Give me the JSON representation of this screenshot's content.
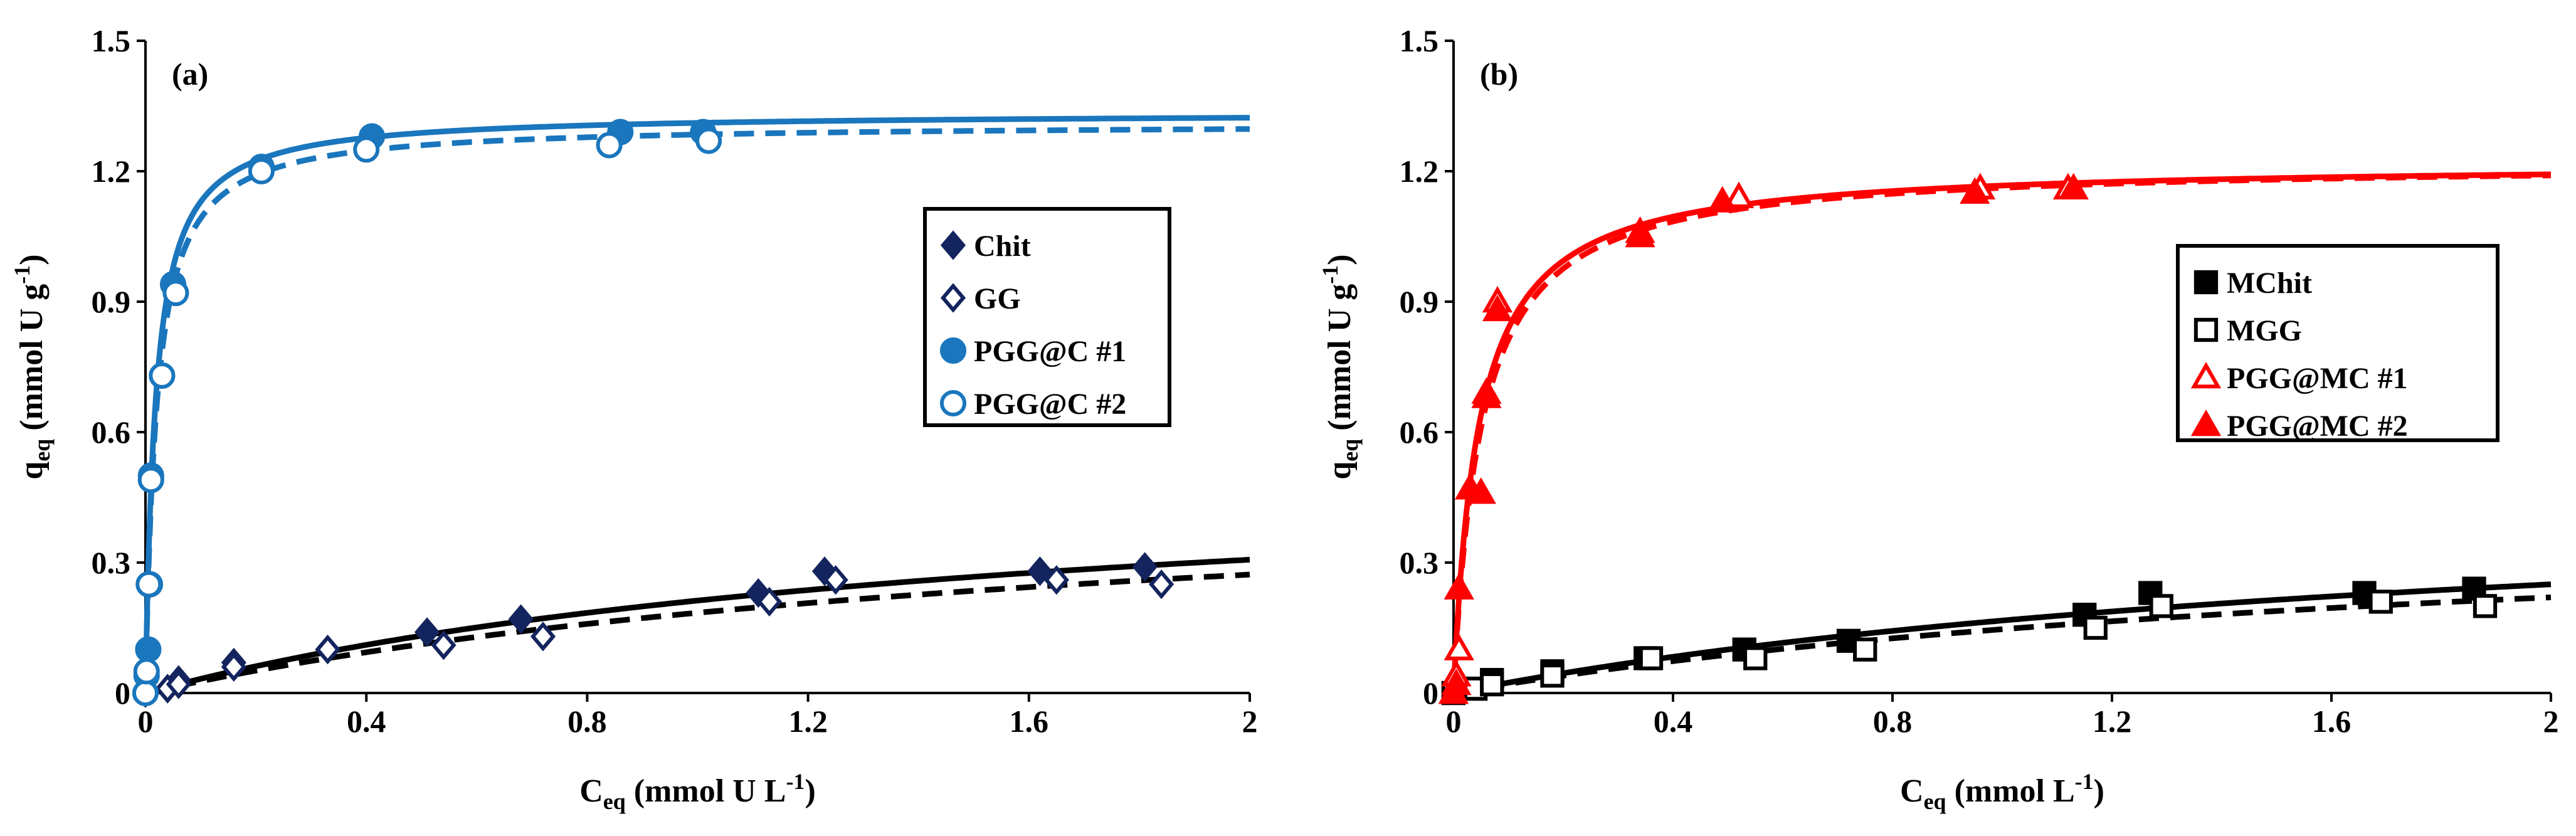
{
  "chart_data": [
    {
      "type": "scatter",
      "panel_label": "(a)",
      "xlabel": {
        "main": "C",
        "sub": "eq",
        "rest": " (mmol U L",
        "sup": "-1",
        "close": ")"
      },
      "ylabel": {
        "main": "q",
        "sub": "eq",
        "rest": " (mmol U  g",
        "sup": "-1",
        "close": ")"
      },
      "xlim": [
        0,
        2
      ],
      "ylim": [
        0,
        1.5
      ],
      "xticks": [
        "0",
        "0.4",
        "0.8",
        "1.2",
        "1.6",
        "2"
      ],
      "yticks": [
        "0",
        "0.3",
        "0.6",
        "0.9",
        "1.2",
        "1.5"
      ],
      "xtick_values": [
        0,
        0.4,
        0.8,
        1.2,
        1.6,
        2
      ],
      "ytick_values": [
        0,
        0.3,
        0.6,
        0.9,
        1.2,
        1.5
      ],
      "legend_position": "center-right",
      "series": [
        {
          "name": "Chit",
          "marker": "diamond-filled",
          "color": "#14245e",
          "x": [
            0,
            0.04,
            0.06,
            0.16,
            0.33,
            0.51,
            0.68,
            1.11,
            1.23,
            1.62,
            1.81
          ],
          "y": [
            0,
            0.01,
            0.03,
            0.07,
            0.1,
            0.14,
            0.17,
            0.23,
            0.28,
            0.28,
            0.29
          ]
        },
        {
          "name": "GG",
          "marker": "diamond-open",
          "color": "#14245e",
          "x": [
            0,
            0.04,
            0.06,
            0.16,
            0.33,
            0.54,
            0.72,
            1.13,
            1.25,
            1.65,
            1.84
          ],
          "y": [
            0,
            0.01,
            0.02,
            0.06,
            0.1,
            0.11,
            0.13,
            0.21,
            0.26,
            0.26,
            0.25
          ]
        },
        {
          "name": "PGG@C #1",
          "marker": "circle-filled",
          "color": "#1a76bd",
          "x": [
            0,
            0.002,
            0.005,
            0.008,
            0.01,
            0.03,
            0.05,
            0.21,
            0.41,
            0.86,
            1.01
          ],
          "y": [
            0,
            0.04,
            0.1,
            0.25,
            0.5,
            0.73,
            0.94,
            1.21,
            1.28,
            1.29,
            1.29
          ]
        },
        {
          "name": "PGG@C #2",
          "marker": "circle-open",
          "color": "#1a76bd",
          "x": [
            0,
            0.002,
            0.006,
            0.01,
            0.03,
            0.055,
            0.21,
            0.4,
            0.84,
            1.02
          ],
          "y": [
            0,
            0.05,
            0.25,
            0.49,
            0.73,
            0.92,
            1.2,
            1.25,
            1.26,
            1.27
          ]
        }
      ],
      "fits": [
        {
          "name": "Chit fit",
          "style": "solid",
          "color": "#000000",
          "qmax": 0.55,
          "K": 0.63
        },
        {
          "name": "GG fit",
          "style": "dashed",
          "color": "#000000",
          "qmax": 0.52,
          "K": 0.55
        },
        {
          "name": "PGG@C #1 fit",
          "style": "solid",
          "color": "#1a76bd",
          "qmax": 1.335,
          "K": 55
        },
        {
          "name": "PGG@C #2 fit",
          "style": "dashed",
          "color": "#1a76bd",
          "qmax": 1.31,
          "K": 50
        }
      ]
    },
    {
      "type": "scatter",
      "panel_label": "(b)",
      "xlabel": {
        "main": "C",
        "sub": "eq",
        "rest": " (mmol L",
        "sup": "-1",
        "close": ")"
      },
      "ylabel": {
        "main": "q",
        "sub": "eq",
        "rest": " (mmol U  g",
        "sup": "-1",
        "close": ")"
      },
      "xlim": [
        0,
        2
      ],
      "ylim": [
        0,
        1.5
      ],
      "xticks": [
        "0",
        "0.4",
        "0.8",
        "1.2",
        "1.6",
        "2"
      ],
      "yticks": [
        "0",
        "0.3",
        "0.6",
        "0.9",
        "1.2",
        "1.5"
      ],
      "xtick_values": [
        0,
        0.4,
        0.8,
        1.2,
        1.6,
        2
      ],
      "ytick_values": [
        0,
        0.3,
        0.6,
        0.9,
        1.2,
        1.5
      ],
      "legend_position": "center-right",
      "series": [
        {
          "name": "MChit",
          "marker": "square-filled",
          "color": "#000000",
          "x": [
            0,
            0.04,
            0.07,
            0.18,
            0.35,
            0.53,
            0.72,
            1.15,
            1.27,
            1.66,
            1.86
          ],
          "y": [
            0,
            0.01,
            0.03,
            0.05,
            0.08,
            0.1,
            0.12,
            0.18,
            0.23,
            0.23,
            0.24
          ]
        },
        {
          "name": "MGG",
          "marker": "square-open",
          "color": "#000000",
          "x": [
            0,
            0.04,
            0.07,
            0.18,
            0.36,
            0.55,
            0.75,
            1.17,
            1.29,
            1.69,
            1.88
          ],
          "y": [
            0,
            0.01,
            0.02,
            0.04,
            0.08,
            0.08,
            0.1,
            0.15,
            0.2,
            0.21,
            0.2
          ]
        },
        {
          "name": "PGG@MC #1",
          "marker": "triangle-open",
          "color": "#ff0000",
          "x": [
            0,
            0.005,
            0.01,
            0.03,
            0.06,
            0.08,
            0.34,
            0.52,
            0.96,
            1.12
          ],
          "y": [
            0,
            0.04,
            0.1,
            0.47,
            0.69,
            0.9,
            1.06,
            1.14,
            1.16,
            1.16
          ]
        },
        {
          "name": "PGG@MC #2",
          "marker": "triangle-filled",
          "color": "#ff0000",
          "x": [
            0,
            0.005,
            0.01,
            0.03,
            0.05,
            0.06,
            0.08,
            0.34,
            0.49,
            0.95,
            1.13
          ],
          "y": [
            0,
            0.02,
            0.24,
            0.47,
            0.46,
            0.68,
            0.88,
            1.05,
            1.13,
            1.15,
            1.16
          ]
        }
      ],
      "fits": [
        {
          "name": "MChit fit",
          "style": "solid",
          "color": "#000000",
          "qmax": 0.5,
          "K": 0.5
        },
        {
          "name": "MGG fit",
          "style": "dashed",
          "color": "#000000",
          "qmax": 0.44,
          "K": 0.5
        },
        {
          "name": "PGG@MC #1 fit",
          "style": "solid",
          "color": "#ff0000",
          "qmax": 1.22,
          "K": 22
        },
        {
          "name": "PGG@MC #2 fit",
          "style": "dashed",
          "color": "#ff0000",
          "qmax": 1.22,
          "K": 20
        }
      ]
    }
  ]
}
